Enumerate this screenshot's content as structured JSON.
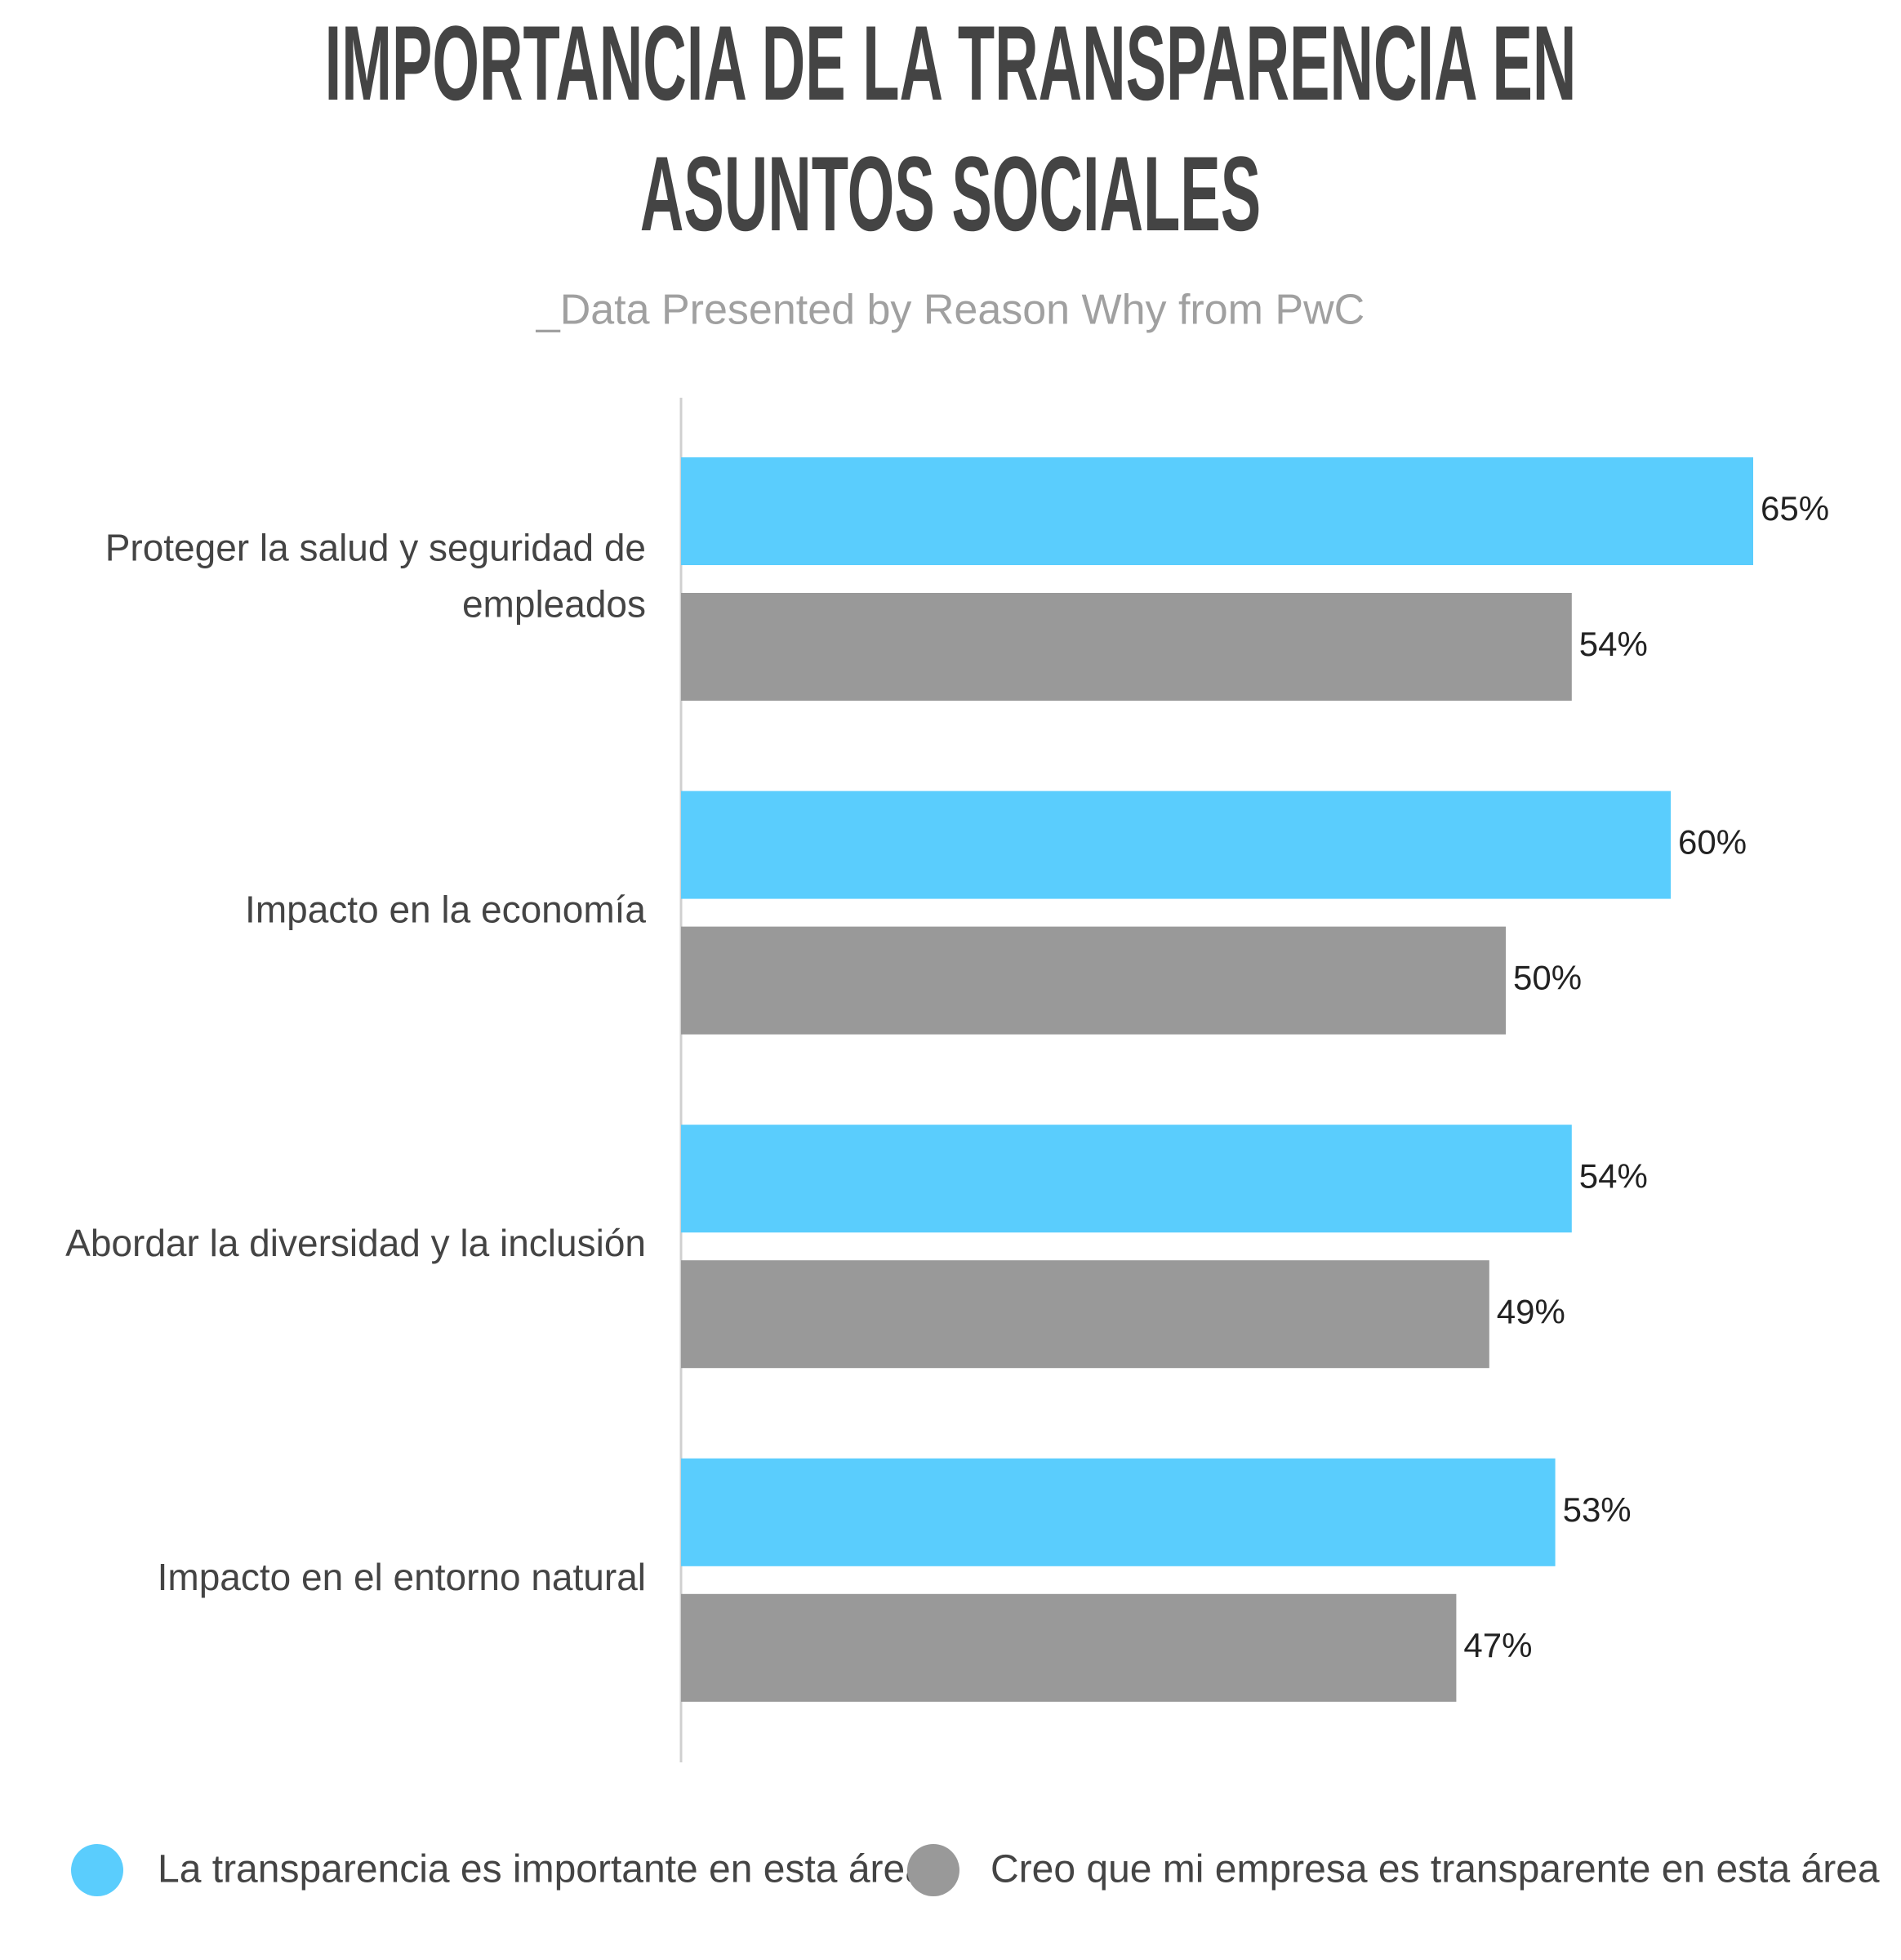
{
  "chart_data": {
    "type": "bar",
    "orientation": "horizontal",
    "title": "IMPORTANCIA DE LA TRANSPARENCIA EN ASUNTOS SOCIALES",
    "subtitle": "_Data Presented by Reason Why from PwC",
    "categories": [
      "Proteger la salud y seguridad de empleados",
      "Impacto en la economía",
      "Abordar la diversidad y la inclusión",
      "Impacto en el entorno natural"
    ],
    "series": [
      {
        "name": "La transparencia es importante en esta área",
        "color": "#5acdfd",
        "values": [
          65,
          60,
          54,
          53
        ],
        "value_labels": [
          "65%",
          "60%",
          "54%",
          "53%"
        ]
      },
      {
        "name": "Creo que mi empresa es transparente en esta área",
        "color": "#999999",
        "values": [
          54,
          50,
          49,
          47
        ],
        "value_labels": [
          "54%",
          "50%",
          "49%",
          "47%"
        ]
      }
    ],
    "legend": "bottom"
  }
}
